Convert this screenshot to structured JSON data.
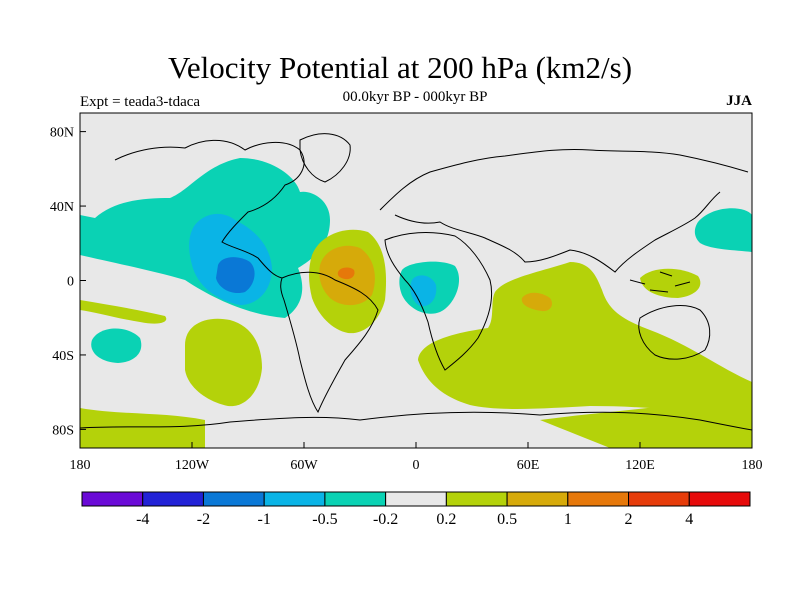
{
  "title": "Velocity Potential at 200 hPa (km2/s)",
  "subtitle": "00.0kyr BP - 000kyr BP",
  "experiment": "Expt = teada3-tdaca",
  "season": "JJA",
  "map": {
    "lon_range": [
      -180,
      180
    ],
    "lat_range": [
      -90,
      90
    ],
    "lon_ticks": [
      {
        "value": -180,
        "label": "180"
      },
      {
        "value": -120,
        "label": "120W"
      },
      {
        "value": -60,
        "label": "60W"
      },
      {
        "value": 0,
        "label": "0"
      },
      {
        "value": 60,
        "label": "60E"
      },
      {
        "value": 120,
        "label": "120E"
      },
      {
        "value": 180,
        "label": "180"
      }
    ],
    "lat_ticks": [
      {
        "value": 80,
        "label": "80N"
      },
      {
        "value": 40,
        "label": "40N"
      },
      {
        "value": 0,
        "label": "0"
      },
      {
        "value": -40,
        "label": "40S"
      },
      {
        "value": -80,
        "label": "80S"
      }
    ]
  },
  "colorbar": {
    "colors": [
      "#6a0ad6",
      "#2222d6",
      "#0a78d6",
      "#0ab4e6",
      "#0ad2b4",
      "#e8e8e8",
      "#b4d20a",
      "#d6aa0a",
      "#e6780a",
      "#e63c0a",
      "#e60a0a"
    ],
    "labels": [
      "-4",
      "-2",
      "-1",
      "-0.5",
      "-0.2",
      "0.2",
      "0.5",
      "1",
      "2",
      "4"
    ]
  },
  "palette": {
    "background_field": "#e8e8e8",
    "coast": "#000000"
  }
}
